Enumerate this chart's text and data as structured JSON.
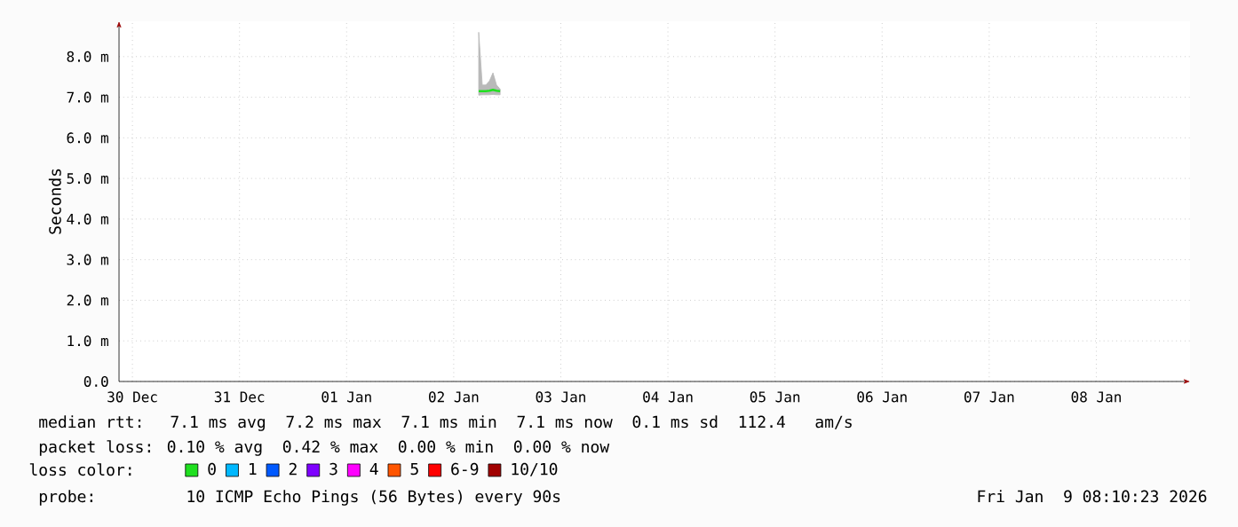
{
  "chart_data": {
    "type": "line",
    "ylabel": "Seconds",
    "x": [
      "2026-01-02T17:36",
      "2026-01-02T18:24",
      "2026-01-02T19:12",
      "2026-01-02T20:00",
      "2026-01-02T20:48",
      "2026-01-02T21:36",
      "2026-01-02T22:24"
    ],
    "series": [
      {
        "name": "0",
        "color": "#20e020",
        "values": [
          7.15,
          7.15,
          7.15,
          7.16,
          7.18,
          7.16,
          7.15
        ],
        "lower": [
          7.05,
          7.06,
          7.06,
          7.06,
          7.07,
          7.06,
          7.06
        ],
        "upper": [
          8.6,
          7.3,
          7.3,
          7.4,
          7.6,
          7.3,
          7.2
        ]
      },
      {
        "name": "1",
        "color": "#00b8ff",
        "values": [
          null,
          null,
          null,
          null,
          null,
          null,
          null
        ]
      },
      {
        "name": "2",
        "color": "#0059ff",
        "values": [
          null,
          null,
          null,
          null,
          null,
          null,
          null
        ]
      },
      {
        "name": "3",
        "color": "#7e00ff",
        "values": [
          null,
          null,
          null,
          null,
          null,
          null,
          null
        ]
      },
      {
        "name": "4",
        "color": "#ff00ff",
        "values": [
          null,
          null,
          null,
          null,
          null,
          null,
          null
        ]
      },
      {
        "name": "5",
        "color": "#ff5500",
        "values": [
          null,
          null,
          null,
          null,
          null,
          null,
          null
        ]
      },
      {
        "name": "6-9",
        "color": "#ff0000",
        "values": [
          null,
          null,
          null,
          null,
          null,
          null,
          null
        ]
      },
      {
        "name": "10/10",
        "color": "#a10000",
        "values": [
          null,
          null,
          null,
          null,
          null,
          null,
          null
        ]
      }
    ],
    "legend": "bottom",
    "legend_title": "loss color:",
    "grid": true,
    "marker": "none",
    "line_style": "solid",
    "xlim": [
      "2025-12-30T09:00",
      "2026-01-09T09:00"
    ],
    "xticks": [
      {
        "value": "2025-12-30T12:00",
        "label": "30 Dec"
      },
      {
        "value": "2025-12-31T12:00",
        "label": "31 Dec"
      },
      {
        "value": "2026-01-01T12:00",
        "label": "01 Jan"
      },
      {
        "value": "2026-01-02T12:00",
        "label": "02 Jan"
      },
      {
        "value": "2026-01-03T12:00",
        "label": "03 Jan"
      },
      {
        "value": "2026-01-04T12:00",
        "label": "04 Jan"
      },
      {
        "value": "2026-01-05T12:00",
        "label": "05 Jan"
      },
      {
        "value": "2026-01-06T12:00",
        "label": "06 Jan"
      },
      {
        "value": "2026-01-07T12:00",
        "label": "07 Jan"
      },
      {
        "value": "2026-01-08T12:00",
        "label": "08 Jan"
      }
    ],
    "ylim": [
      0,
      8.87
    ],
    "yticks": [
      {
        "value": 0,
        "label": "0.0"
      },
      {
        "value": 1,
        "label": "1.0 m"
      },
      {
        "value": 2,
        "label": "2.0 m"
      },
      {
        "value": 3,
        "label": "3.0 m"
      },
      {
        "value": 4,
        "label": "4.0 m"
      },
      {
        "value": 5,
        "label": "5.0 m"
      },
      {
        "value": 6,
        "label": "6.0 m"
      },
      {
        "value": 7,
        "label": "7.0 m"
      },
      {
        "value": 8,
        "label": "8.0 m"
      }
    ],
    "annotations": [
      "median rtt:  7.1 ms avg  7.2 ms max  7.1 ms min  7.1 ms now  0.1 ms sd  112.4   am/s",
      "packet loss: 0.10 % avg  0.42 % max  0.00 % min  0.00 % now",
      "probe:       10 ICMP Echo Pings (56 Bytes) every 90s",
      "Fri Jan  9 08:10:23 2026"
    ]
  }
}
